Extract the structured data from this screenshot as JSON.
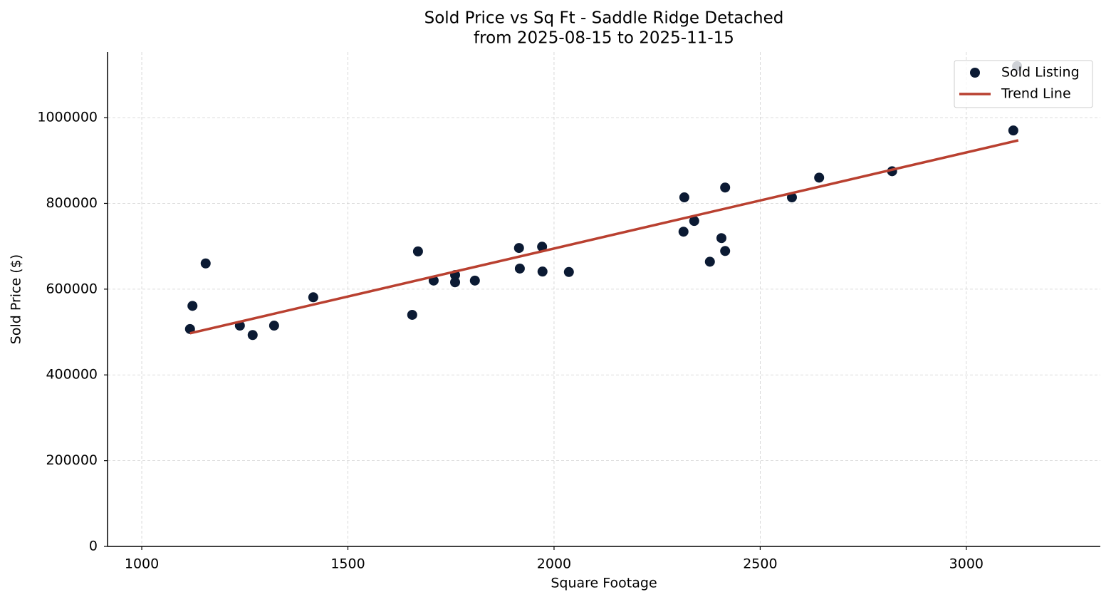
{
  "chart_data": {
    "type": "scatter",
    "title": "Sold Price vs Sq Ft - Saddle Ridge Detached",
    "subtitle": "from 2025-08-15 to 2025-11-15",
    "x_label": "Square Footage",
    "y_label": "Sold Price ($)",
    "xlim": [
      917,
      3325
    ],
    "ylim": [
      0,
      1153000
    ],
    "xticks": [
      1000,
      1500,
      2000,
      2500,
      3000
    ],
    "yticks": [
      0,
      200000,
      400000,
      600000,
      800000,
      1000000
    ],
    "grid": true,
    "legend": "upper right",
    "series": [
      {
        "name": "Sold Listing",
        "type": "scatter",
        "color": "#0b1a33",
        "x": [
          1117,
          1123,
          1155,
          1238,
          1269,
          1321,
          1416,
          1656,
          1670,
          1708,
          1760,
          1760,
          1808,
          1915,
          1917,
          1971,
          1972,
          2036,
          2314,
          2316,
          2340,
          2378,
          2406,
          2415,
          2415,
          2577,
          2643,
          2820,
          3114,
          3123
        ],
        "values": [
          507000,
          561000,
          660000,
          515000,
          493000,
          515000,
          581000,
          540000,
          688000,
          620000,
          633000,
          616000,
          620000,
          696000,
          648000,
          699000,
          641000,
          640000,
          734000,
          814000,
          759000,
          664000,
          719000,
          837000,
          689000,
          814000,
          860000,
          875000,
          970000,
          1120000
        ]
      },
      {
        "name": "Trend Line",
        "type": "line",
        "color": "#b94030",
        "x": [
          1117,
          3126
        ],
        "values": [
          497000,
          947000
        ]
      }
    ]
  }
}
